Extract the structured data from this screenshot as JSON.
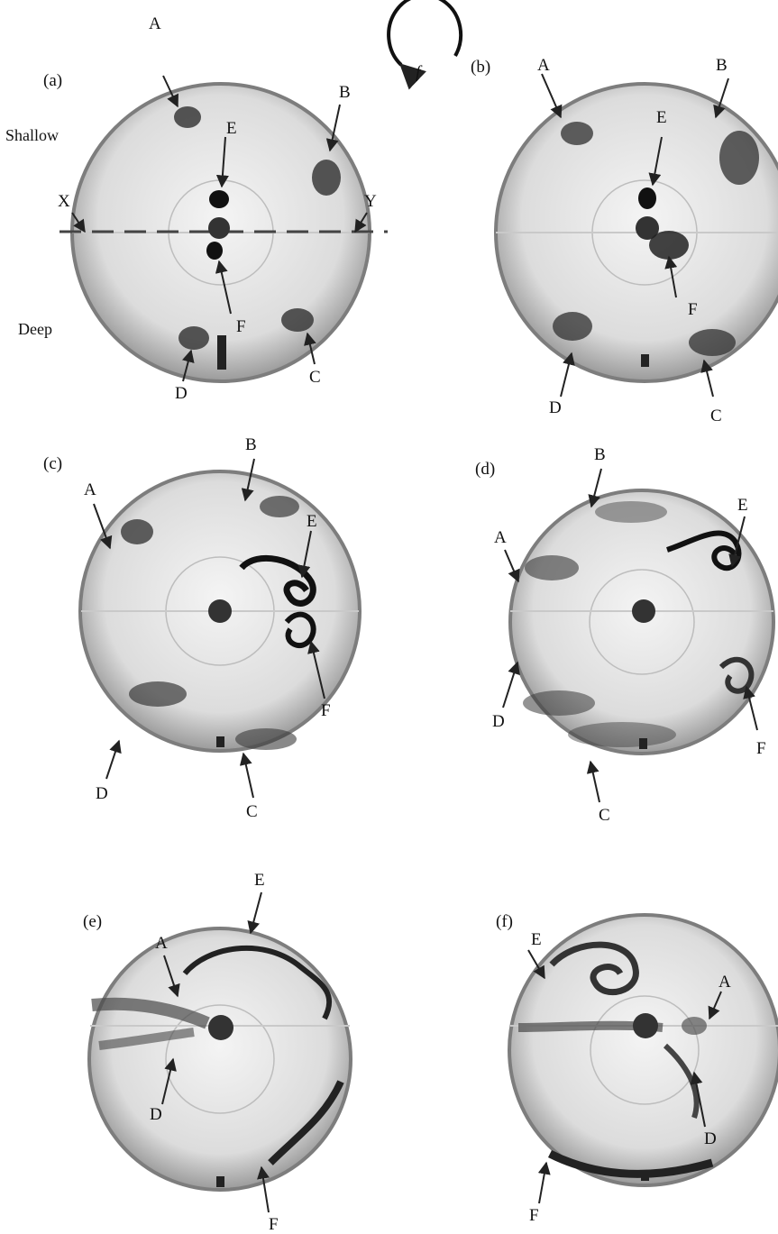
{
  "figure": {
    "rotation_symbol": "f",
    "side_labels": {
      "shallow": "Shallow",
      "deep": "Deep"
    },
    "section_markers": {
      "left": "X",
      "right": "Y"
    },
    "colors": {
      "tank_rim": "#8a8a8a",
      "tank_fill": "#e6e6e6",
      "dye": "#2a2a2a",
      "arrow": "#222222"
    },
    "panels": [
      {
        "id": "a",
        "label": "(a)",
        "markers": [
          "A",
          "B",
          "C",
          "D",
          "E",
          "F"
        ]
      },
      {
        "id": "b",
        "label": "(b)",
        "markers": [
          "A",
          "B",
          "C",
          "D",
          "E",
          "F"
        ]
      },
      {
        "id": "c",
        "label": "(c)",
        "markers": [
          "A",
          "B",
          "C",
          "D",
          "E",
          "F"
        ]
      },
      {
        "id": "d",
        "label": "(d)",
        "markers": [
          "A",
          "B",
          "C",
          "D",
          "E",
          "F"
        ]
      },
      {
        "id": "e",
        "label": "(e)",
        "markers": [
          "A",
          "D",
          "E",
          "F"
        ]
      },
      {
        "id": "f",
        "label": "(f)",
        "markers": [
          "A",
          "D",
          "E",
          "F"
        ]
      }
    ]
  }
}
